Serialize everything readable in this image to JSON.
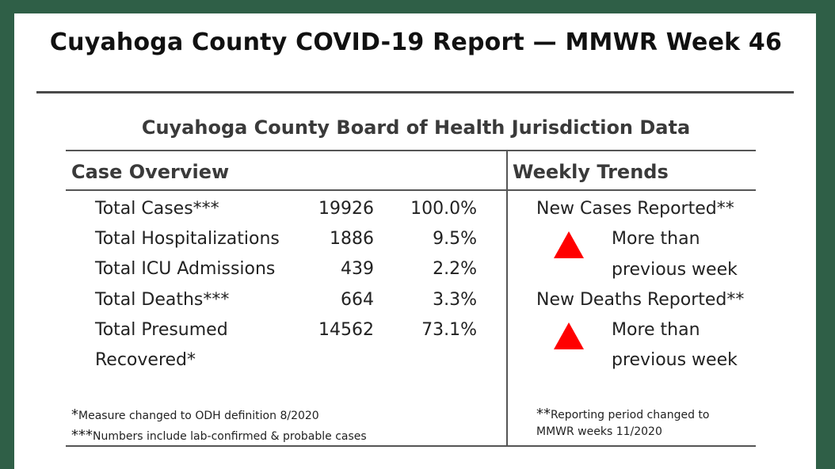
{
  "title": "Cuyahoga County COVID-19 Report — MMWR Week 46",
  "subtitle": "Cuyahoga County Board of Health Jurisdiction Data",
  "case_overview": {
    "heading": "Case Overview",
    "rows": [
      {
        "label": "Total Cases***",
        "value": "19926",
        "percent": "100.0%"
      },
      {
        "label": "Total Hospitalizations",
        "value": "1886",
        "percent": "9.5%"
      },
      {
        "label": "Total ICU Admissions",
        "value": "439",
        "percent": "2.2%"
      },
      {
        "label": "Total Deaths***",
        "value": "664",
        "percent": "3.3%"
      },
      {
        "label": "Total Presumed",
        "label_line2": "Recovered*",
        "value": "14562",
        "percent": "73.1%"
      }
    ],
    "footnotes": [
      {
        "mark": "*",
        "text": "Measure changed to ODH  definition 8/2020"
      },
      {
        "mark": "***",
        "text": "Numbers include lab-confirmed & probable cases"
      }
    ]
  },
  "weekly_trends": {
    "heading": "Weekly Trends",
    "items": [
      {
        "label": "New Cases Reported**",
        "trend": "up",
        "line1": "More than",
        "line2": "previous week",
        "color": "#ff0000"
      },
      {
        "label": "New Deaths Reported**",
        "trend": "up",
        "line1": "More than",
        "line2": "previous week",
        "color": "#ff0000"
      }
    ],
    "footnote": {
      "mark": "**",
      "line1": "Reporting period changed to",
      "line2": "MMWR weeks 11/2020"
    }
  }
}
